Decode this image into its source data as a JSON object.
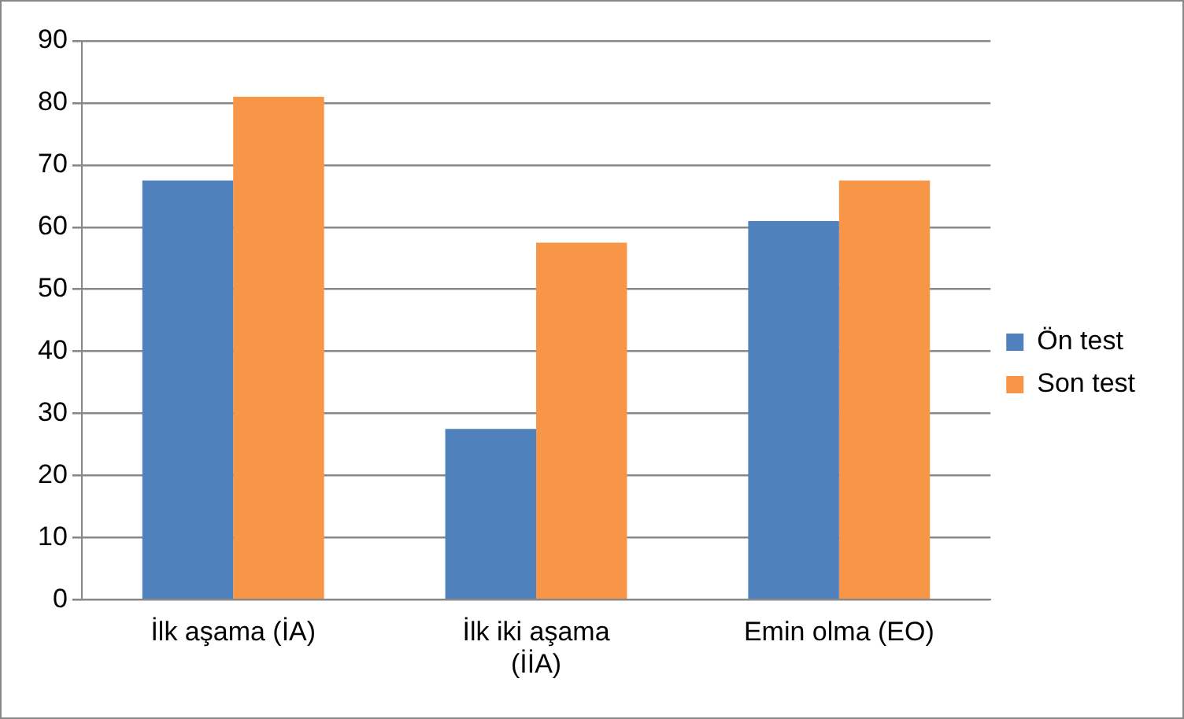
{
  "chart_data": {
    "type": "bar",
    "categories": [
      "İlk aşama (İA)",
      "İlk iki aşama (İİA)",
      "Emin olma (EO)"
    ],
    "series": [
      {
        "name": "Ön test",
        "color": "#4f81bd",
        "values": [
          67.5,
          27.5,
          61
        ]
      },
      {
        "name": "Son test",
        "color": "#f79646",
        "values": [
          81,
          57.5,
          67.5
        ]
      }
    ],
    "ylim": [
      0,
      90
    ],
    "yticks": [
      0,
      10,
      20,
      30,
      40,
      50,
      60,
      70,
      80,
      90
    ],
    "grid": "y",
    "legend": "right"
  }
}
